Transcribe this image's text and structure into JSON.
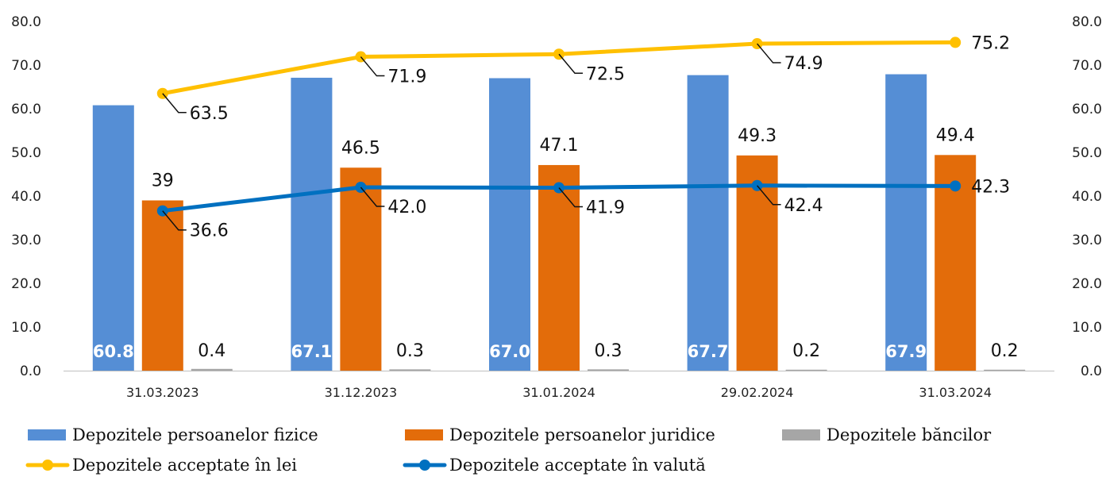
{
  "chart_data": {
    "type": "bar",
    "categories": [
      "31.03.2023",
      "31.12.2023",
      "31.01.2024",
      "29.02.2024",
      "31.03.2024"
    ],
    "ylim": [
      0,
      80
    ],
    "yticks": [
      "0.0",
      "10.0",
      "20.0",
      "30.0",
      "40.0",
      "50.0",
      "60.0",
      "70.0",
      "80.0"
    ],
    "y2lim": [
      0,
      80
    ],
    "y2ticks": [
      "0.0",
      "10.0",
      "20.0",
      "30.0",
      "40.0",
      "50.0",
      "60.0",
      "70.0",
      "80.0"
    ],
    "grid": false,
    "legend_position": "bottom",
    "bar_series": [
      {
        "name": "Depozitele persoanelor fizice",
        "color": "#558ED5",
        "values": [
          60.8,
          67.1,
          67.0,
          67.7,
          67.9
        ],
        "labels": [
          "60.8",
          "67.1",
          "67.0",
          "67.7",
          "67.9"
        ],
        "label_style": "inside-bottom"
      },
      {
        "name": "Depozitele persoanelor juridice",
        "color": "#E36C0A",
        "values": [
          39,
          46.5,
          47.1,
          49.3,
          49.4
        ],
        "labels": [
          "39",
          "46.5",
          "47.1",
          "49.3",
          "49.4"
        ],
        "label_style": "above"
      },
      {
        "name": "Depozitele băncilor",
        "color": "#A6A6A6",
        "values": [
          0.4,
          0.3,
          0.3,
          0.2,
          0.2
        ],
        "labels": [
          "0.4",
          "0.3",
          "0.3",
          "0.2",
          "0.2"
        ],
        "label_style": "above"
      }
    ],
    "line_series": [
      {
        "name": "Depozitele acceptate în lei",
        "color": "#FFC000",
        "axis": "right",
        "values": [
          63.5,
          71.9,
          72.5,
          74.9,
          75.2
        ],
        "labels": [
          "63.5",
          "71.9",
          "72.5",
          "74.9",
          "75.2"
        ]
      },
      {
        "name": "Depozitele acceptate în valută",
        "color": "#0070C0",
        "axis": "right",
        "values": [
          36.6,
          42.0,
          41.9,
          42.4,
          42.3
        ],
        "labels": [
          "36.6",
          "42.0",
          "41.9",
          "42.4",
          "42.3"
        ]
      }
    ]
  }
}
